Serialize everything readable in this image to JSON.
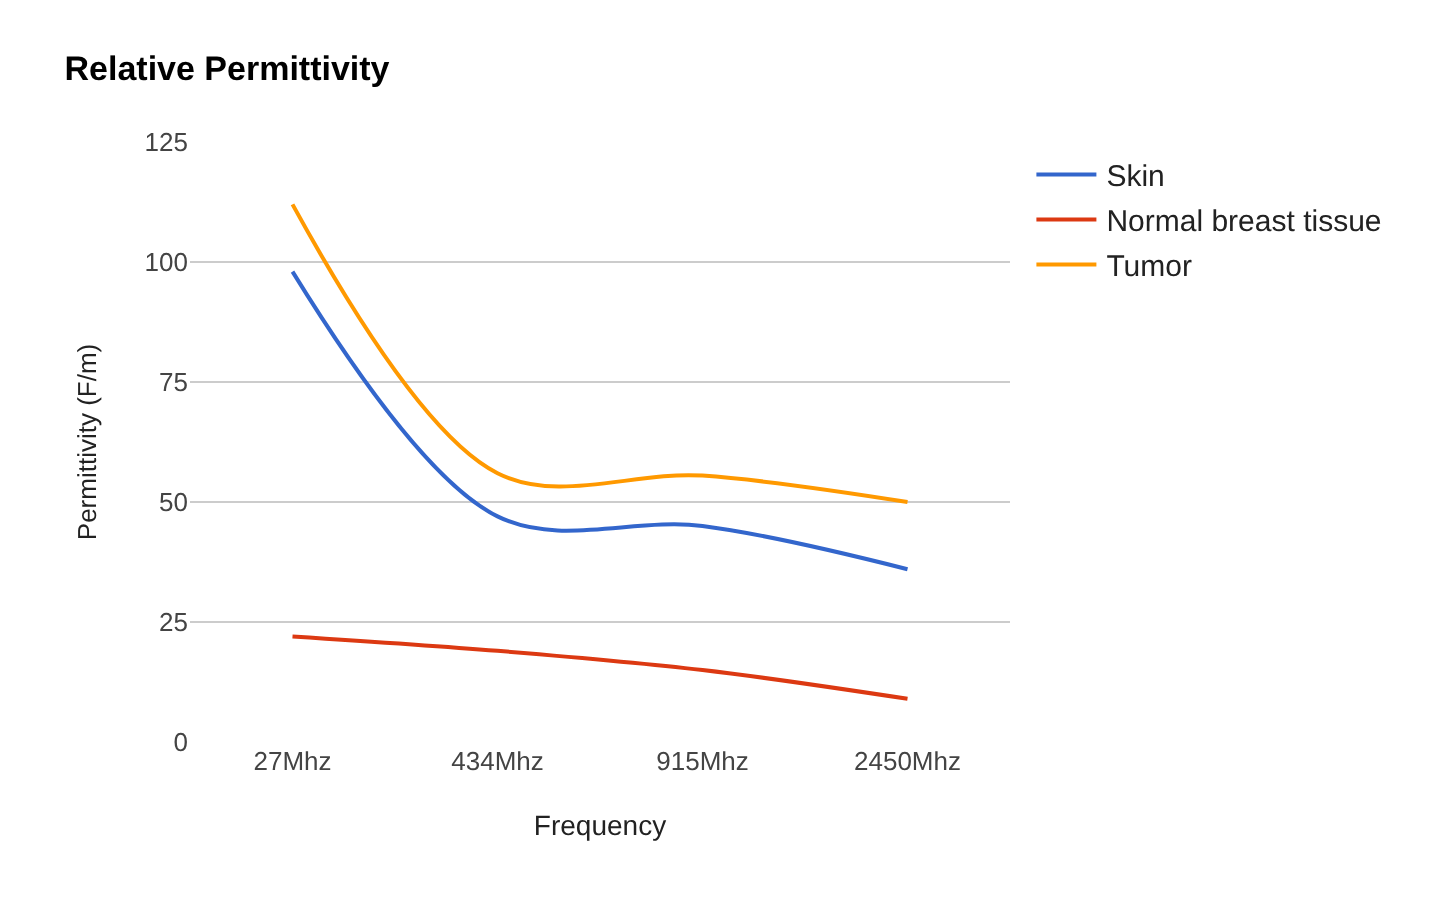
{
  "chart_data": {
    "type": "line",
    "title": "Relative Permittivity",
    "xlabel": "Frequency",
    "ylabel": "Permittivity (F/m)",
    "categories": [
      "27Mhz",
      "434Mhz",
      "915Mhz",
      "2450Mhz"
    ],
    "series": [
      {
        "name": "Skin",
        "color": "#3366cc",
        "values": [
          98,
          47,
          45,
          36
        ]
      },
      {
        "name": "Normal breast tissue",
        "color": "#dc3912",
        "values": [
          22,
          19,
          15,
          9
        ]
      },
      {
        "name": "Tumor",
        "color": "#ff9900",
        "values": [
          112,
          56,
          55.5,
          50
        ]
      }
    ],
    "ylim": [
      0,
      125
    ],
    "yticks": [
      0,
      25,
      50,
      75,
      100,
      125
    ],
    "grid": "y",
    "legend": "top right",
    "marker": "none",
    "line_style": "solid"
  }
}
